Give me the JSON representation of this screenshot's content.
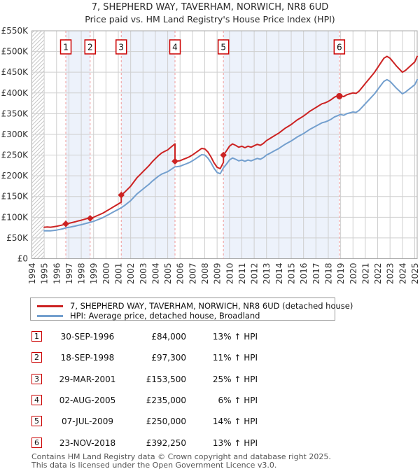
{
  "header": {
    "title": "7, SHEPHERD WAY, TAVERHAM, NORWICH, NR8 6UD",
    "subtitle": "Price paid vs. HM Land Registry's House Price Index (HPI)"
  },
  "colors": {
    "property": "#cc2222",
    "hpi": "#739fce",
    "band": "#edf2fb",
    "grid": "#cfcfcf",
    "plot_border": "#a8a8a8",
    "purchase_line": "#f09a9a",
    "marker_box_border": "#cc0000",
    "hatch": "#c6c6c6",
    "axis_text": "#333333",
    "footer_text": "#555555"
  },
  "chart_data": {
    "type": "line",
    "title": "7, SHEPHERD WAY, TAVERHAM, NORWICH, NR8 6UD",
    "subtitle": "Price paid vs. HM Land Registry's House Price Index (HPI)",
    "xlim": [
      1994,
      2025.2
    ],
    "ylim": [
      0,
      550000
    ],
    "grid": true,
    "legend_position": "bottom",
    "x_ticks": [
      1994,
      1995,
      1996,
      1997,
      1998,
      1999,
      2000,
      2001,
      2002,
      2003,
      2004,
      2005,
      2006,
      2007,
      2008,
      2009,
      2010,
      2011,
      2012,
      2013,
      2014,
      2015,
      2016,
      2017,
      2018,
      2019,
      2020,
      2021,
      2022,
      2023,
      2024,
      2025
    ],
    "y_ticks": [
      {
        "value": 0,
        "label": "£0"
      },
      {
        "value": 50000,
        "label": "£50K"
      },
      {
        "value": 100000,
        "label": "£100K"
      },
      {
        "value": 150000,
        "label": "£150K"
      },
      {
        "value": 200000,
        "label": "£200K"
      },
      {
        "value": 250000,
        "label": "£250K"
      },
      {
        "value": 300000,
        "label": "£300K"
      },
      {
        "value": 350000,
        "label": "£350K"
      },
      {
        "value": 400000,
        "label": "£400K"
      },
      {
        "value": 450000,
        "label": "£450K"
      },
      {
        "value": 500000,
        "label": "£500K"
      },
      {
        "value": 550000,
        "label": "£550K"
      }
    ],
    "no_data_region": [
      1994,
      1995
    ],
    "ownership_bands": [
      [
        1,
        2
      ],
      [
        3,
        4
      ],
      [
        5,
        6
      ]
    ],
    "series": [
      {
        "name": "HPI: Average price, detached house, Broadland",
        "color_key": "hpi",
        "points_unit_k": true,
        "points": [
          [
            1995,
            67
          ],
          [
            1995.25,
            67.5
          ],
          [
            1995.5,
            67
          ],
          [
            1995.75,
            68
          ],
          [
            1996,
            69
          ],
          [
            1996.25,
            70.5
          ],
          [
            1996.5,
            72
          ],
          [
            1996.75,
            74.3
          ],
          [
            1997,
            75.5
          ],
          [
            1997.25,
            77
          ],
          [
            1997.5,
            78.5
          ],
          [
            1997.75,
            80.5
          ],
          [
            1998,
            82
          ],
          [
            1998.25,
            84
          ],
          [
            1998.5,
            86
          ],
          [
            1998.72,
            87.7
          ],
          [
            1999,
            90
          ],
          [
            1999.25,
            93
          ],
          [
            1999.5,
            96
          ],
          [
            1999.75,
            99
          ],
          [
            2000,
            103
          ],
          [
            2000.25,
            107
          ],
          [
            2000.5,
            111
          ],
          [
            2000.75,
            115
          ],
          [
            2001,
            119
          ],
          [
            2001.24,
            122.8
          ],
          [
            2001.5,
            128
          ],
          [
            2001.75,
            134
          ],
          [
            2002,
            140
          ],
          [
            2002.25,
            148
          ],
          [
            2002.5,
            156
          ],
          [
            2002.75,
            162
          ],
          [
            2003,
            168
          ],
          [
            2003.25,
            174
          ],
          [
            2003.5,
            180
          ],
          [
            2003.75,
            187
          ],
          [
            2004,
            193
          ],
          [
            2004.25,
            199
          ],
          [
            2004.5,
            204
          ],
          [
            2004.75,
            207
          ],
          [
            2005,
            210
          ],
          [
            2005.25,
            215
          ],
          [
            2005.5,
            220
          ],
          [
            2005.59,
            221.7
          ],
          [
            2005.75,
            222
          ],
          [
            2006,
            223
          ],
          [
            2006.25,
            226
          ],
          [
            2006.5,
            229
          ],
          [
            2006.75,
            232
          ],
          [
            2007,
            236
          ],
          [
            2007.25,
            241
          ],
          [
            2007.5,
            246
          ],
          [
            2007.75,
            251
          ],
          [
            2008,
            250
          ],
          [
            2008.25,
            243
          ],
          [
            2008.5,
            232
          ],
          [
            2008.75,
            218
          ],
          [
            2009,
            208
          ],
          [
            2009.25,
            205
          ],
          [
            2009.51,
            219.3
          ],
          [
            2009.75,
            228
          ],
          [
            2010,
            238
          ],
          [
            2010.25,
            243
          ],
          [
            2010.5,
            240
          ],
          [
            2010.75,
            236
          ],
          [
            2011,
            238
          ],
          [
            2011.25,
            235
          ],
          [
            2011.5,
            238
          ],
          [
            2011.75,
            236
          ],
          [
            2012,
            239
          ],
          [
            2012.25,
            242
          ],
          [
            2012.5,
            240
          ],
          [
            2012.75,
            244
          ],
          [
            2013,
            250
          ],
          [
            2013.25,
            254
          ],
          [
            2013.5,
            258
          ],
          [
            2013.75,
            262
          ],
          [
            2014,
            266
          ],
          [
            2014.25,
            271
          ],
          [
            2014.5,
            276
          ],
          [
            2014.75,
            280
          ],
          [
            2015,
            284
          ],
          [
            2015.25,
            289
          ],
          [
            2015.5,
            294
          ],
          [
            2015.75,
            298
          ],
          [
            2016,
            302
          ],
          [
            2016.25,
            307
          ],
          [
            2016.5,
            312
          ],
          [
            2016.75,
            316
          ],
          [
            2017,
            320
          ],
          [
            2017.25,
            324
          ],
          [
            2017.5,
            328
          ],
          [
            2017.75,
            330
          ],
          [
            2018,
            333
          ],
          [
            2018.25,
            337
          ],
          [
            2018.5,
            342
          ],
          [
            2018.75,
            345
          ],
          [
            2018.9,
            347
          ],
          [
            2019,
            348
          ],
          [
            2019.25,
            346
          ],
          [
            2019.5,
            350
          ],
          [
            2019.75,
            352
          ],
          [
            2020,
            354
          ],
          [
            2020.25,
            353
          ],
          [
            2020.5,
            358
          ],
          [
            2020.75,
            366
          ],
          [
            2021,
            374
          ],
          [
            2021.25,
            382
          ],
          [
            2021.5,
            390
          ],
          [
            2021.75,
            398
          ],
          [
            2022,
            408
          ],
          [
            2022.25,
            418
          ],
          [
            2022.5,
            428
          ],
          [
            2022.75,
            432
          ],
          [
            2023,
            428
          ],
          [
            2023.25,
            420
          ],
          [
            2023.5,
            412
          ],
          [
            2023.75,
            405
          ],
          [
            2024,
            398
          ],
          [
            2024.25,
            402
          ],
          [
            2024.5,
            408
          ],
          [
            2024.75,
            414
          ],
          [
            2025,
            420
          ],
          [
            2025.2,
            432
          ]
        ]
      },
      {
        "name": "7, SHEPHERD WAY, TAVERHAM, NORWICH, NR8 6UD (detached house)",
        "color_key": "property",
        "points_unit_k": true,
        "points": [
          [
            1995,
            75.8
          ],
          [
            1995.25,
            76.3
          ],
          [
            1995.5,
            75.8
          ],
          [
            1995.75,
            76.9
          ],
          [
            1996,
            78
          ],
          [
            1996.25,
            79.7
          ],
          [
            1996.5,
            81.4
          ],
          [
            1996.75,
            84
          ],
          [
            1997,
            85.4
          ],
          [
            1997.25,
            87.1
          ],
          [
            1997.5,
            88.8
          ],
          [
            1997.75,
            91
          ],
          [
            1998,
            92.7
          ],
          [
            1998.25,
            95
          ],
          [
            1998.5,
            97.2
          ],
          [
            1998.72,
            99.2
          ],
          [
            1998.72,
            97.3
          ],
          [
            1999,
            99.9
          ],
          [
            1999.25,
            103.2
          ],
          [
            1999.5,
            106.5
          ],
          [
            1999.75,
            109.8
          ],
          [
            2000,
            114.3
          ],
          [
            2000.25,
            118.7
          ],
          [
            2000.5,
            123.2
          ],
          [
            2000.75,
            127.6
          ],
          [
            2001,
            132
          ],
          [
            2001.24,
            136.2
          ],
          [
            2001.24,
            153.5
          ],
          [
            2001.5,
            160
          ],
          [
            2001.75,
            167.5
          ],
          [
            2002,
            175
          ],
          [
            2002.25,
            185
          ],
          [
            2002.5,
            195
          ],
          [
            2002.75,
            202.5
          ],
          [
            2003,
            210
          ],
          [
            2003.25,
            217.5
          ],
          [
            2003.5,
            225
          ],
          [
            2003.75,
            233.8
          ],
          [
            2004,
            241.3
          ],
          [
            2004.25,
            248.8
          ],
          [
            2004.5,
            255
          ],
          [
            2004.75,
            258.8
          ],
          [
            2005,
            262.5
          ],
          [
            2005.25,
            268.8
          ],
          [
            2005.5,
            275
          ],
          [
            2005.59,
            277.1
          ],
          [
            2005.59,
            235
          ],
          [
            2005.75,
            235.3
          ],
          [
            2006,
            236.4
          ],
          [
            2006.25,
            239.6
          ],
          [
            2006.5,
            242.7
          ],
          [
            2006.75,
            245.9
          ],
          [
            2007,
            250.2
          ],
          [
            2007.25,
            255.5
          ],
          [
            2007.5,
            260.8
          ],
          [
            2007.75,
            266.1
          ],
          [
            2008,
            265
          ],
          [
            2008.25,
            257.6
          ],
          [
            2008.5,
            245.9
          ],
          [
            2008.75,
            231.1
          ],
          [
            2009,
            220.5
          ],
          [
            2009.25,
            217.3
          ],
          [
            2009.51,
            232.5
          ],
          [
            2009.51,
            250
          ],
          [
            2009.75,
            259.9
          ],
          [
            2010,
            271.3
          ],
          [
            2010.25,
            277
          ],
          [
            2010.5,
            273.6
          ],
          [
            2010.75,
            269
          ],
          [
            2011,
            271.3
          ],
          [
            2011.25,
            267.9
          ],
          [
            2011.5,
            271.3
          ],
          [
            2011.75,
            269
          ],
          [
            2012,
            272.5
          ],
          [
            2012.25,
            275.9
          ],
          [
            2012.5,
            273.6
          ],
          [
            2012.75,
            278.2
          ],
          [
            2013,
            285
          ],
          [
            2013.25,
            289.6
          ],
          [
            2013.5,
            294.1
          ],
          [
            2013.75,
            298.7
          ],
          [
            2014,
            303.2
          ],
          [
            2014.25,
            308.9
          ],
          [
            2014.5,
            314.6
          ],
          [
            2014.75,
            319.2
          ],
          [
            2015,
            323.8
          ],
          [
            2015.25,
            329.5
          ],
          [
            2015.5,
            335.2
          ],
          [
            2015.75,
            339.7
          ],
          [
            2016,
            344.3
          ],
          [
            2016.25,
            350
          ],
          [
            2016.5,
            355.7
          ],
          [
            2016.75,
            360.2
          ],
          [
            2017,
            364.8
          ],
          [
            2017.25,
            369.4
          ],
          [
            2017.5,
            374
          ],
          [
            2017.75,
            376.2
          ],
          [
            2018,
            379.6
          ],
          [
            2018.25,
            384.2
          ],
          [
            2018.5,
            389.9
          ],
          [
            2018.75,
            393.3
          ],
          [
            2018.9,
            395.6
          ],
          [
            2018.9,
            392.3
          ],
          [
            2019,
            393.4
          ],
          [
            2019.25,
            391.1
          ],
          [
            2019.5,
            395.6
          ],
          [
            2019.75,
            397.9
          ],
          [
            2020,
            400.2
          ],
          [
            2020.25,
            399
          ],
          [
            2020.5,
            404.7
          ],
          [
            2020.75,
            413.7
          ],
          [
            2021,
            422.8
          ],
          [
            2021.25,
            431.8
          ],
          [
            2021.5,
            440.9
          ],
          [
            2021.75,
            449.9
          ],
          [
            2022,
            461.2
          ],
          [
            2022.25,
            472.5
          ],
          [
            2022.5,
            483.8
          ],
          [
            2022.75,
            488.3
          ],
          [
            2023,
            483.8
          ],
          [
            2023.25,
            474.8
          ],
          [
            2023.5,
            465.7
          ],
          [
            2023.75,
            457.8
          ],
          [
            2024,
            449.9
          ],
          [
            2024.25,
            454.4
          ],
          [
            2024.5,
            461.2
          ],
          [
            2024.75,
            468
          ],
          [
            2025,
            474.8
          ],
          [
            2025.2,
            488.3
          ]
        ]
      }
    ],
    "purchases": [
      {
        "n": 1,
        "t": 1996.75,
        "date": "30-SEP-1996",
        "price": 84000,
        "price_label": "£84,000",
        "vs_hpi": "13% ↑ HPI",
        "marker": "diamond"
      },
      {
        "n": 2,
        "t": 1998.72,
        "date": "18-SEP-1998",
        "price": 97300,
        "price_label": "£97,300",
        "vs_hpi": "11% ↑ HPI",
        "marker": "diamond"
      },
      {
        "n": 3,
        "t": 2001.24,
        "date": "29-MAR-2001",
        "price": 153500,
        "price_label": "£153,500",
        "vs_hpi": "25% ↑ HPI",
        "marker": "diamond"
      },
      {
        "n": 4,
        "t": 2005.59,
        "date": "02-AUG-2005",
        "price": 235000,
        "price_label": "£235,000",
        "vs_hpi": "6% ↑ HPI",
        "marker": "diamond"
      },
      {
        "n": 5,
        "t": 2009.51,
        "date": "07-JUL-2009",
        "price": 250000,
        "price_label": "£250,000",
        "vs_hpi": "14% ↑ HPI",
        "marker": "diamond"
      },
      {
        "n": 6,
        "t": 2018.9,
        "date": "23-NOV-2018",
        "price": 392250,
        "price_label": "£392,250",
        "vs_hpi": "13% ↑ HPI",
        "marker": "dot"
      }
    ]
  },
  "legend": {
    "property": "7, SHEPHERD WAY, TAVERHAM, NORWICH, NR8 6UD (detached house)",
    "hpi": "HPI: Average price, detached house, Broadland"
  },
  "footer": {
    "line1": "Contains HM Land Registry data © Crown copyright and database right 2025.",
    "line2": "This data is licensed under the Open Government Licence v3.0."
  }
}
